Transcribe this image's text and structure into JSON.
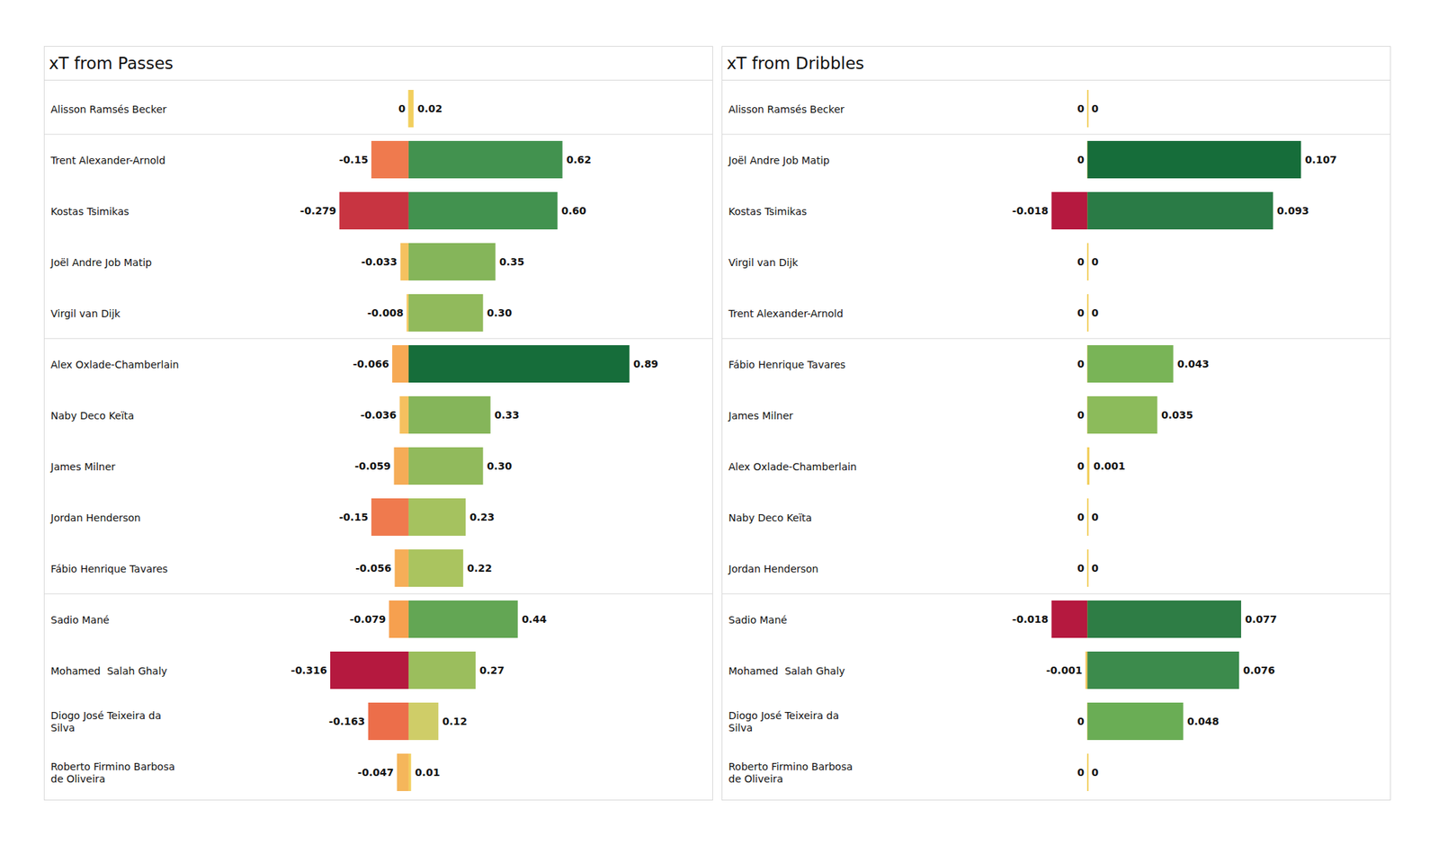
{
  "chart_data": [
    {
      "type": "bar",
      "orientation": "horizontal",
      "title": "xT from Passes",
      "categories": [
        "Alisson Ramsés Becker",
        "Trent Alexander-Arnold",
        "Kostas Tsimikas",
        "Joël Andre Job Matip",
        "Virgil van Dijk",
        "Alex Oxlade-Chamberlain",
        "Naby Deco Keïta",
        "James Milner",
        "Jordan Henderson",
        "Fábio Henrique Tavares",
        "Sadio Mané",
        "Mohamed  Salah Ghaly",
        "Diogo José Teixeira da\nSilva",
        "Roberto Firmino Barbosa\nde Oliveira"
      ],
      "series": [
        {
          "values": [
            0,
            -0.15,
            -0.279,
            -0.033,
            -0.008,
            -0.066,
            -0.036,
            -0.059,
            -0.15,
            -0.056,
            -0.079,
            -0.316,
            -0.163,
            -0.047
          ],
          "value_labels": [
            "0",
            "-0.15",
            "-0.279",
            "-0.033",
            "-0.008",
            "-0.066",
            "-0.036",
            "-0.059",
            "-0.15",
            "-0.056",
            "-0.079",
            "-0.316",
            "-0.163",
            "-0.047"
          ],
          "colors": [
            "#f2cf5e",
            "#ef7a4e",
            "#c83441",
            "#f5c15f",
            "#f5c964",
            "#f6a954",
            "#f5c05f",
            "#f5ac57",
            "#ef7a4e",
            "#f5ae58",
            "#f6a04f",
            "#b5193f",
            "#ec6e4a",
            "#f5b65b"
          ]
        },
        {
          "values": [
            0.02,
            0.62,
            0.6,
            0.35,
            0.3,
            0.89,
            0.33,
            0.3,
            0.23,
            0.22,
            0.44,
            0.27,
            0.12,
            0.01
          ],
          "value_labels": [
            "0.02",
            "0.62",
            "0.60",
            "0.35",
            "0.30",
            "0.89",
            "0.33",
            "0.30",
            "0.23",
            "0.22",
            "0.44",
            "0.27",
            "0.12",
            "0.01"
          ],
          "colors": [
            "#f2cf5e",
            "#42924f",
            "#42924f",
            "#85b55a",
            "#91ba5c",
            "#166d3a",
            "#85b55a",
            "#91ba5c",
            "#a5c25f",
            "#aac45f",
            "#63a654",
            "#9bbe5d",
            "#cfcd68",
            "#f2cf5e"
          ]
        }
      ],
      "xlim": [
        -0.8,
        1.05
      ],
      "tick_labels": false,
      "data_labels": true
    },
    {
      "type": "bar",
      "orientation": "horizontal",
      "title": "xT from Dribbles",
      "categories": [
        "Alisson Ramsés Becker",
        "Joël Andre Job Matip",
        "Kostas Tsimikas",
        "Virgil van Dijk",
        "Trent Alexander-Arnold",
        "Fábio Henrique Tavares",
        "James Milner",
        "Alex Oxlade-Chamberlain",
        "Naby Deco Keïta",
        "Jordan Henderson",
        "Sadio Mané",
        "Mohamed  Salah Ghaly",
        "Diogo José Teixeira da\nSilva",
        "Roberto Firmino Barbosa\nde Oliveira"
      ],
      "series": [
        {
          "values": [
            0,
            0,
            -0.018,
            0,
            0,
            0,
            0,
            0,
            0,
            0,
            -0.018,
            -0.001,
            0,
            0
          ],
          "value_labels": [
            "0",
            "0",
            "-0.018",
            "0",
            "0",
            "0",
            "0",
            "0",
            "0",
            "0",
            "-0.018",
            "-0.001",
            "0",
            "0"
          ],
          "colors": [
            "#f2cf5e",
            "#f2cf5e",
            "#b5193f",
            "#f2cf5e",
            "#f2cf5e",
            "#f2cf5e",
            "#f2cf5e",
            "#f2cf5e",
            "#f2cf5e",
            "#f2cf5e",
            "#b5193f",
            "#f2c55e",
            "#f2cf5e",
            "#f2cf5e"
          ]
        },
        {
          "values": [
            0,
            0.107,
            0.093,
            0,
            0,
            0.043,
            0.035,
            0.001,
            0,
            0,
            0.077,
            0.076,
            0.048,
            0
          ],
          "value_labels": [
            "0",
            "0.107",
            "0.093",
            "0",
            "0",
            "0.043",
            "0.035",
            "0.001",
            "0",
            "0",
            "0.077",
            "0.076",
            "0.048",
            "0"
          ],
          "colors": [
            "#f2cf5e",
            "#166d3a",
            "#2a7b46",
            "#f2cf5e",
            "#f2cf5e",
            "#79b457",
            "#8cbb5b",
            "#f2cf5e",
            "#f2cf5e",
            "#f2cf5e",
            "#2e7d45",
            "#3c8b4c",
            "#6aad55",
            "#f2cf5e"
          ]
        }
      ],
      "xlim": [
        -0.1,
        0.13
      ],
      "tick_labels": false,
      "data_labels": true
    }
  ]
}
